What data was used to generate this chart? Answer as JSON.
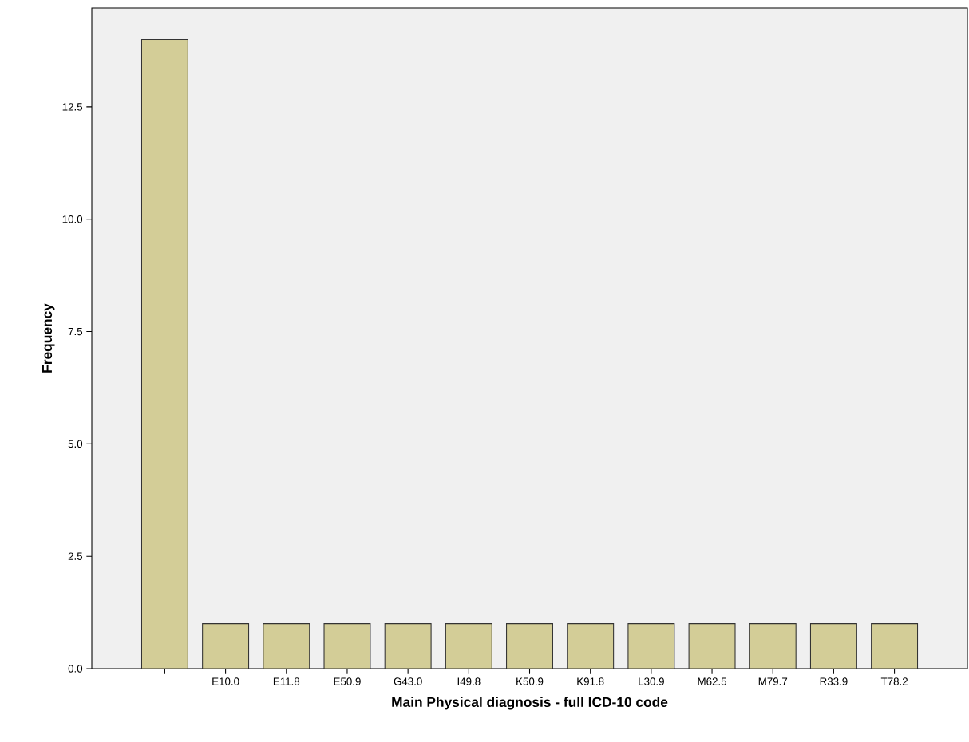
{
  "chart_data": {
    "type": "bar",
    "xlabel": "Main Physical diagnosis - full ICD-10 code",
    "ylabel": "Frequency",
    "categories": [
      null,
      "E10.0",
      "E11.8",
      "E50.9",
      "G43.0",
      "I49.8",
      "K50.9",
      "K91.8",
      "L30.9",
      "M62.5",
      "M79.7",
      "R33.9",
      "T78.2"
    ],
    "values": [
      14,
      1,
      1,
      1,
      1,
      1,
      1,
      1,
      1,
      1,
      1,
      1,
      1
    ],
    "color": "#d3cd97",
    "ylim": [
      0,
      14.7
    ],
    "yticks": [
      {
        "value": 0,
        "label": "0.0"
      },
      {
        "value": 2.5,
        "label": "2.5"
      },
      {
        "value": 5,
        "label": "5.0"
      },
      {
        "value": 7.5,
        "label": "7.5"
      },
      {
        "value": 10,
        "label": "10.0"
      },
      {
        "value": 12.5,
        "label": "12.5"
      }
    ]
  }
}
